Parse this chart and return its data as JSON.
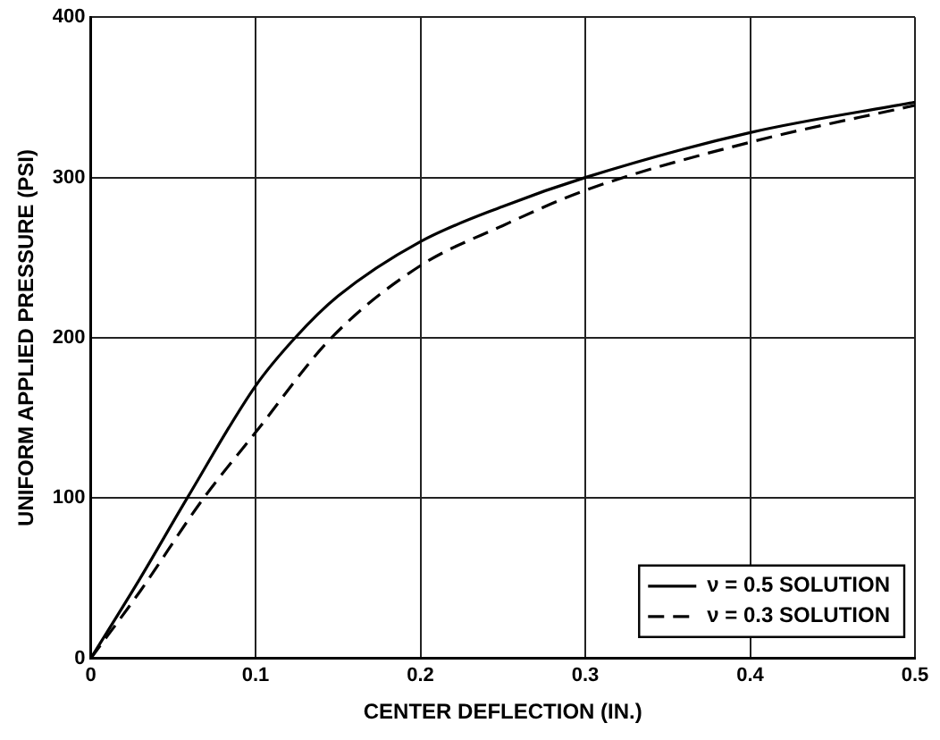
{
  "chart_data": {
    "type": "line",
    "xlabel": "CENTER DEFLECTION (IN.)",
    "ylabel": "UNIFORM APPLIED PRESSURE (PSI)",
    "xlim": [
      0,
      0.5
    ],
    "xticks": [
      0,
      0.1,
      0.2,
      0.3,
      0.4,
      0.5
    ],
    "ylim": [
      0,
      400
    ],
    "yticks": [
      0,
      100,
      200,
      300,
      400
    ],
    "grid": true,
    "legend": "bottom right",
    "series": [
      {
        "name": "ν = 0.5 SOLUTION",
        "color": "#000000",
        "line_style": "solid",
        "x": [
          0,
          0.03,
          0.0585,
          0.1,
          0.124,
          0.15,
          0.2,
          0.25,
          0.3,
          0.4,
          0.5
        ],
        "values": [
          0,
          50,
          100,
          170,
          200,
          226,
          260,
          282,
          300,
          328,
          347
        ]
      },
      {
        "name": "ν = 0.3 SOLUTION",
        "color": "#000000",
        "line_style": "dashed",
        "x": [
          0,
          0.03,
          0.0685,
          0.1,
          0.146,
          0.2,
          0.25,
          0.3,
          0.4,
          0.5
        ],
        "values": [
          0,
          42,
          100,
          141,
          200,
          245,
          270,
          292,
          322,
          345
        ]
      }
    ]
  }
}
